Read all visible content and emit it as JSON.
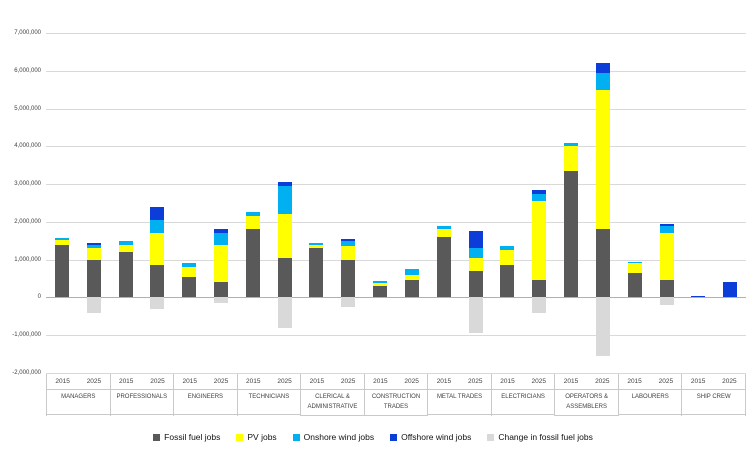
{
  "chart_data": {
    "type": "bar",
    "stacked": true,
    "title": "",
    "ylim": [
      -2000000,
      7000000
    ],
    "ytick_step": 1000000,
    "yticks": [
      "7,000,000",
      "6,000,000",
      "5,000,000",
      "4,000,000",
      "3,000,000",
      "2,000,000",
      "1,000,000",
      "0",
      "-1,000,000",
      "-2,000,000"
    ],
    "grid": true,
    "legend_position": "bottom",
    "years": [
      "2015",
      "2025"
    ],
    "categories": [
      "MANAGERS",
      "PROFESSIONALS",
      "ENGINEERS",
      "TECHNICIANS",
      "CLERICAL & ADMINISTRATIVE",
      "CONSTRUCTION TRADES",
      "METAL TRADES",
      "ELECTRICIANS",
      "OPERATORS & ASSEMBLERS",
      "LABOURERS",
      "SHIP CREW"
    ],
    "series": [
      {
        "name": "Fossil fuel jobs",
        "color": "#595959",
        "values": {
          "2015": [
            1400000,
            1200000,
            550000,
            1800000,
            1300000,
            300000,
            1600000,
            850000,
            3350000,
            650000,
            0
          ],
          "2025": [
            1000000,
            850000,
            400000,
            1050000,
            1000000,
            450000,
            700000,
            450000,
            1800000,
            450000,
            0
          ]
        }
      },
      {
        "name": "PV jobs",
        "color": "#ffff00",
        "values": {
          "2015": [
            120000,
            200000,
            250000,
            350000,
            100000,
            80000,
            200000,
            400000,
            650000,
            250000,
            0
          ],
          "2025": [
            300000,
            850000,
            1000000,
            1150000,
            350000,
            150000,
            350000,
            2100000,
            3700000,
            1250000,
            0
          ]
        }
      },
      {
        "name": "Onshore wind jobs",
        "color": "#00b0f0",
        "values": {
          "2015": [
            60000,
            100000,
            100000,
            100000,
            50000,
            60000,
            100000,
            100000,
            100000,
            50000,
            0
          ],
          "2025": [
            100000,
            350000,
            300000,
            750000,
            150000,
            150000,
            250000,
            200000,
            450000,
            200000,
            0
          ]
        }
      },
      {
        "name": "Offshore wind jobs",
        "color": "#0d3dd9",
        "values": {
          "2015": [
            0,
            0,
            0,
            0,
            0,
            0,
            0,
            0,
            0,
            0,
            50000
          ],
          "2025": [
            50000,
            350000,
            100000,
            100000,
            50000,
            0,
            450000,
            100000,
            250000,
            50000,
            400000
          ]
        }
      },
      {
        "name": "Change in fossil fuel jobs",
        "color": "#d9d9d9",
        "values": {
          "2015": [
            0,
            0,
            0,
            0,
            0,
            0,
            0,
            0,
            0,
            0,
            0
          ],
          "2025": [
            -420000,
            -300000,
            -150000,
            -800000,
            -250000,
            0,
            -950000,
            -400000,
            -1550000,
            -200000,
            0
          ]
        }
      }
    ]
  }
}
